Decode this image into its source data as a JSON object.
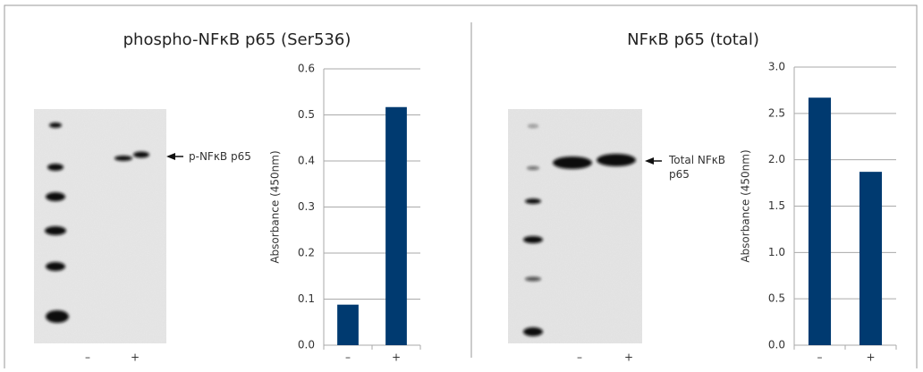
{
  "chart_data": [
    {
      "type": "bar",
      "title": "phospho-NFκB p65 (Ser536)",
      "blot": {
        "band_label": "p-NFκB p65",
        "lanes": [
          "–",
          "+"
        ]
      },
      "ylabel": "Absorbance (450nm)",
      "categories": [
        "–",
        "+"
      ],
      "values": [
        0.088,
        0.517
      ],
      "color": "#003a70",
      "ylim": [
        0,
        0.6
      ],
      "yticks": [
        {
          "value": 0,
          "label": "0.0"
        },
        0.1,
        0.2,
        0.3,
        0.4,
        0.5,
        0.6
      ],
      "grid": true
    },
    {
      "type": "bar",
      "title": "NFκB p65 (total)",
      "blot": {
        "band_label": "Total NFκB p65",
        "lanes": [
          "–",
          "+"
        ]
      },
      "ylabel": "Absorbance (450nm)",
      "categories": [
        "–",
        "+"
      ],
      "values": [
        2.67,
        1.87
      ],
      "color": "#003a70",
      "ylim": [
        0,
        3
      ],
      "yticks": [
        {
          "value": 0,
          "label": "0.0"
        },
        0.5,
        {
          "value": 1,
          "label": "1.0"
        },
        1.5,
        {
          "value": 2,
          "label": "2.0"
        },
        2.5,
        {
          "value": 3,
          "label": "3.0"
        }
      ],
      "grid": true
    }
  ]
}
